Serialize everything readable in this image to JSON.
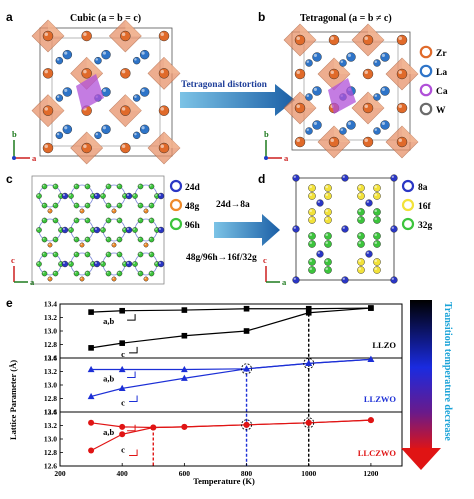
{
  "panels": {
    "a": {
      "label": "a",
      "title": "Cubic (a = b = c)"
    },
    "b": {
      "label": "b",
      "title": "Tetragonal (a = b ≠ c)"
    },
    "c": {
      "label": "c"
    },
    "d": {
      "label": "d"
    },
    "e": {
      "label": "e"
    }
  },
  "arrow_ab_label": "Tetragonal distortion",
  "arrow_cd_label_1": "24d→8a",
  "arrow_cd_label_2": "48g/96h→16f/32g",
  "axes_triad": {
    "b": "b",
    "c": "c",
    "a": "a"
  },
  "legend_b": [
    {
      "label": "Zr",
      "color": "#e06a2a"
    },
    {
      "label": "La",
      "color": "#2e74c8"
    },
    {
      "label": "Ca",
      "color": "#b050d8"
    },
    {
      "label": "W",
      "color": "#6b6b6b"
    }
  ],
  "legend_c": [
    {
      "label": "24d",
      "color": "#2a36c4"
    },
    {
      "label": "48g",
      "color": "#ee8a2a"
    },
    {
      "label": "96h",
      "color": "#3cc43c"
    }
  ],
  "legend_d": [
    {
      "label": "8a",
      "color": "#2a36c4"
    },
    {
      "label": "16f",
      "color": "#f2e23a"
    },
    {
      "label": "32g",
      "color": "#3cc43c"
    }
  ],
  "gradient_label": "Transition temperature decrease",
  "colors": {
    "LLZO": "#000000",
    "LLZWO": "#1c2fd6",
    "LLCZWO": "#e01414",
    "gradient_top": "#000000",
    "gradient_mid": "#1a2be0",
    "gradient_bottom": "#e01414"
  },
  "chart_data": {
    "type": "line",
    "xlabel": "Temperature (K)",
    "ylabel": "Lattice Parameter (Å)",
    "xlim": [
      200,
      1300
    ],
    "xticks": [
      "200",
      "400",
      "600",
      "800",
      "1000",
      "1200"
    ],
    "subplots": [
      {
        "name": "LLZO",
        "ylim": [
          12.6,
          13.4
        ],
        "yticks": [
          "12.6",
          "12.8",
          "13.0",
          "13.2",
          "13.4"
        ],
        "marker": "square",
        "series": [
          {
            "name": "a,b",
            "x": [
              300,
              400,
              600,
              800,
              1000,
              1200
            ],
            "y": [
              13.28,
              13.3,
              13.31,
              13.33,
              13.33,
              13.34
            ]
          },
          {
            "name": "c",
            "x": [
              300,
              400,
              600,
              800,
              1000,
              1200
            ],
            "y": [
              12.75,
              12.82,
              12.93,
              13.0,
              13.27,
              13.34
            ]
          }
        ],
        "transition_x": 1000
      },
      {
        "name": "LLZWO",
        "ylim": [
          12.6,
          13.4
        ],
        "yticks": [
          "12.6",
          "12.8",
          "13.0",
          "13.2",
          "13.4"
        ],
        "marker": "triangle",
        "series": [
          {
            "name": "a,b",
            "x": [
              300,
              400,
              600,
              800,
              1000,
              1200
            ],
            "y": [
              13.23,
              13.23,
              13.23,
              13.24,
              13.32,
              13.38
            ]
          },
          {
            "name": "c",
            "x": [
              300,
              400,
              600,
              800,
              1000,
              1200
            ],
            "y": [
              12.83,
              12.95,
              13.1,
              13.24,
              13.32,
              13.38
            ]
          }
        ],
        "transition_x": 800
      },
      {
        "name": "LLCZWO",
        "ylim": [
          12.6,
          13.4
        ],
        "yticks": [
          "12.6",
          "12.8",
          "13.0",
          "13.2",
          "13.4"
        ],
        "marker": "circle",
        "series": [
          {
            "name": "a,b",
            "x": [
              300,
              400,
              500,
              600,
              800,
              1000,
              1200
            ],
            "y": [
              13.24,
              13.18,
              13.17,
              13.18,
              13.21,
              13.24,
              13.28
            ]
          },
          {
            "name": "c",
            "x": [
              300,
              400,
              500,
              600,
              800,
              1000,
              1200
            ],
            "y": [
              12.83,
              13.07,
              13.17,
              13.18,
              13.21,
              13.24,
              13.28
            ]
          }
        ],
        "transition_x": 500
      }
    ],
    "markers_at_transition": [
      1000,
      800
    ]
  }
}
